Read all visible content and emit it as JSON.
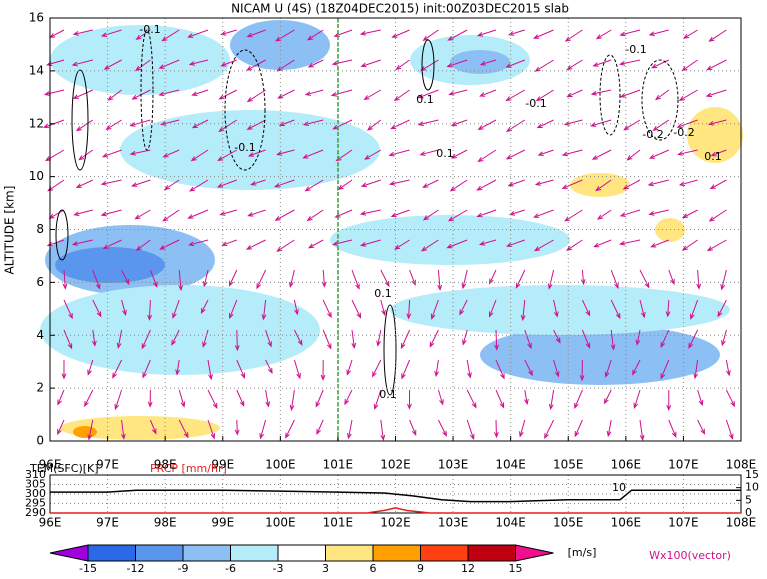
{
  "chart_data": [
    {
      "type": "field",
      "title": "NICAM U (4S) (18Z04DEC2015) init:00Z03DEC2015 slab",
      "ylabel": "ALTITUDE [km]",
      "xlim": [
        96,
        108
      ],
      "ylim": [
        0,
        16
      ],
      "xticks": [
        {
          "value": 96,
          "label": "96E"
        },
        {
          "value": 97,
          "label": "97E"
        },
        {
          "value": 98,
          "label": "98E"
        },
        {
          "value": 99,
          "label": "99E"
        },
        {
          "value": 100,
          "label": "100E"
        },
        {
          "value": 101,
          "label": "101E"
        },
        {
          "value": 102,
          "label": "102E"
        },
        {
          "value": 103,
          "label": "103E"
        },
        {
          "value": 104,
          "label": "104E"
        },
        {
          "value": 105,
          "label": "105E"
        },
        {
          "value": 106,
          "label": "106E"
        },
        {
          "value": 107,
          "label": "107E"
        },
        {
          "value": 108,
          "label": "108E"
        }
      ],
      "yticks": [
        0,
        2,
        4,
        6,
        8,
        10,
        12,
        14,
        16
      ],
      "grid": true,
      "annotations": [
        "-0.1",
        "-0.1",
        "-0.1",
        "0.1",
        "-0.1",
        "0.1",
        "-0.2",
        "-0.2",
        "0.1",
        "0.1",
        "0.1"
      ]
    },
    {
      "type": "line",
      "ylabel": "TEM(SFC)[K]",
      "y2label": "PRCP [mm/hr]",
      "annotation": "10",
      "xlim": [
        96,
        108
      ],
      "ylim": [
        290,
        310
      ],
      "y2lim": [
        0,
        15
      ],
      "xticks": [
        {
          "value": 96,
          "label": "96E"
        },
        {
          "value": 97,
          "label": "97E"
        },
        {
          "value": 98,
          "label": "98E"
        },
        {
          "value": 99,
          "label": "99E"
        },
        {
          "value": 100,
          "label": "100E"
        },
        {
          "value": 101,
          "label": "101E"
        },
        {
          "value": 102,
          "label": "102E"
        },
        {
          "value": 103,
          "label": "103E"
        },
        {
          "value": 104,
          "label": "104E"
        },
        {
          "value": 105,
          "label": "105E"
        },
        {
          "value": 106,
          "label": "106E"
        },
        {
          "value": 107,
          "label": "107E"
        },
        {
          "value": 108,
          "label": "108E"
        }
      ],
      "yticks": [
        290,
        295,
        300,
        305,
        310
      ],
      "y2ticks": [
        0,
        5,
        10,
        15
      ],
      "series": [
        {
          "name": "TEM(SFC)[K]",
          "color": "#000000",
          "x": [
            96,
            97,
            97.5,
            98,
            99,
            100,
            101,
            101.8,
            102.3,
            102.8,
            103.3,
            104,
            104.5,
            105,
            105.5,
            105.9,
            106.1,
            106.5,
            107,
            108
          ],
          "values": [
            301,
            301,
            302,
            302,
            302,
            301.5,
            301,
            300.5,
            299,
            297,
            296,
            296,
            296.5,
            297,
            297,
            297,
            302,
            302,
            302,
            302
          ]
        },
        {
          "name": "PRCP [mm/hr]",
          "color": "#e02020",
          "axis": "y2",
          "x": [
            96,
            101.5,
            101.8,
            102,
            102.2,
            102.6,
            108
          ],
          "values": [
            0,
            0,
            1,
            2,
            1,
            0,
            0
          ]
        }
      ]
    },
    {
      "type": "colorbar",
      "levels": [
        -15,
        -12,
        -9,
        -6,
        -3,
        3,
        6,
        9,
        12,
        15
      ],
      "colors": [
        "#a000e0",
        "#2a6ae8",
        "#5a96ee",
        "#8cc0f5",
        "#b4ecfa",
        "#ffffff",
        "#ffe680",
        "#ffa000",
        "#ff4010",
        "#c00010",
        "#f0108c"
      ],
      "unit": "[m/s]",
      "note": "Wx100(vector)"
    }
  ]
}
